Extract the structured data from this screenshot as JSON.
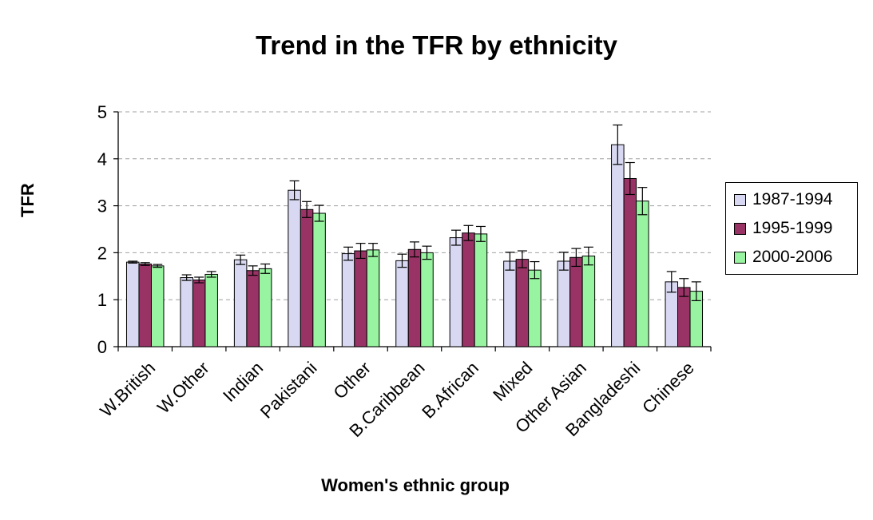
{
  "chart_data": {
    "type": "bar",
    "title": "Trend in the TFR by ethnicity",
    "xlabel": "Women's ethnic group",
    "ylabel": "TFR",
    "ylim": [
      0,
      5
    ],
    "yticks": [
      "0",
      "1",
      "2",
      "3",
      "4",
      "5"
    ],
    "grid": true,
    "legend_position": "right",
    "error_bars": true,
    "categories": [
      "W.British",
      "W.Other",
      "Indian",
      "Pakistani",
      "Other",
      "B.Caribbean",
      "B.African",
      "Mixed",
      "Other Asian",
      "Bangladeshi",
      "Chinese"
    ],
    "series": [
      {
        "name": "1987-1994",
        "color": "#d8d8f2",
        "values": [
          1.8,
          1.47,
          1.85,
          3.33,
          1.98,
          1.83,
          2.32,
          1.82,
          1.82,
          4.3,
          1.38
        ],
        "error_upper": [
          1.82,
          1.53,
          1.95,
          3.53,
          2.12,
          1.97,
          2.48,
          2.01,
          2.01,
          4.72,
          1.6
        ],
        "error_lower": [
          1.78,
          1.41,
          1.75,
          3.13,
          1.84,
          1.69,
          2.16,
          1.63,
          1.63,
          3.88,
          1.16
        ]
      },
      {
        "name": "1995-1999",
        "color": "#993366",
        "values": [
          1.76,
          1.42,
          1.62,
          2.92,
          2.04,
          2.07,
          2.42,
          1.86,
          1.9,
          3.58,
          1.26
        ],
        "error_upper": [
          1.79,
          1.48,
          1.72,
          3.09,
          2.2,
          2.23,
          2.58,
          2.04,
          2.09,
          3.92,
          1.45
        ],
        "error_lower": [
          1.73,
          1.36,
          1.52,
          2.75,
          1.88,
          1.91,
          2.26,
          1.68,
          1.71,
          3.24,
          1.07
        ]
      },
      {
        "name": "2000-2006",
        "color": "#98f4a0",
        "values": [
          1.72,
          1.54,
          1.66,
          2.84,
          2.06,
          2.0,
          2.4,
          1.63,
          1.93,
          3.1,
          1.18
        ],
        "error_upper": [
          1.75,
          1.6,
          1.76,
          3.01,
          2.2,
          2.14,
          2.56,
          1.81,
          2.12,
          3.39,
          1.38
        ],
        "error_lower": [
          1.69,
          1.48,
          1.56,
          2.67,
          1.92,
          1.86,
          2.24,
          1.45,
          1.74,
          2.81,
          0.98
        ]
      }
    ]
  }
}
